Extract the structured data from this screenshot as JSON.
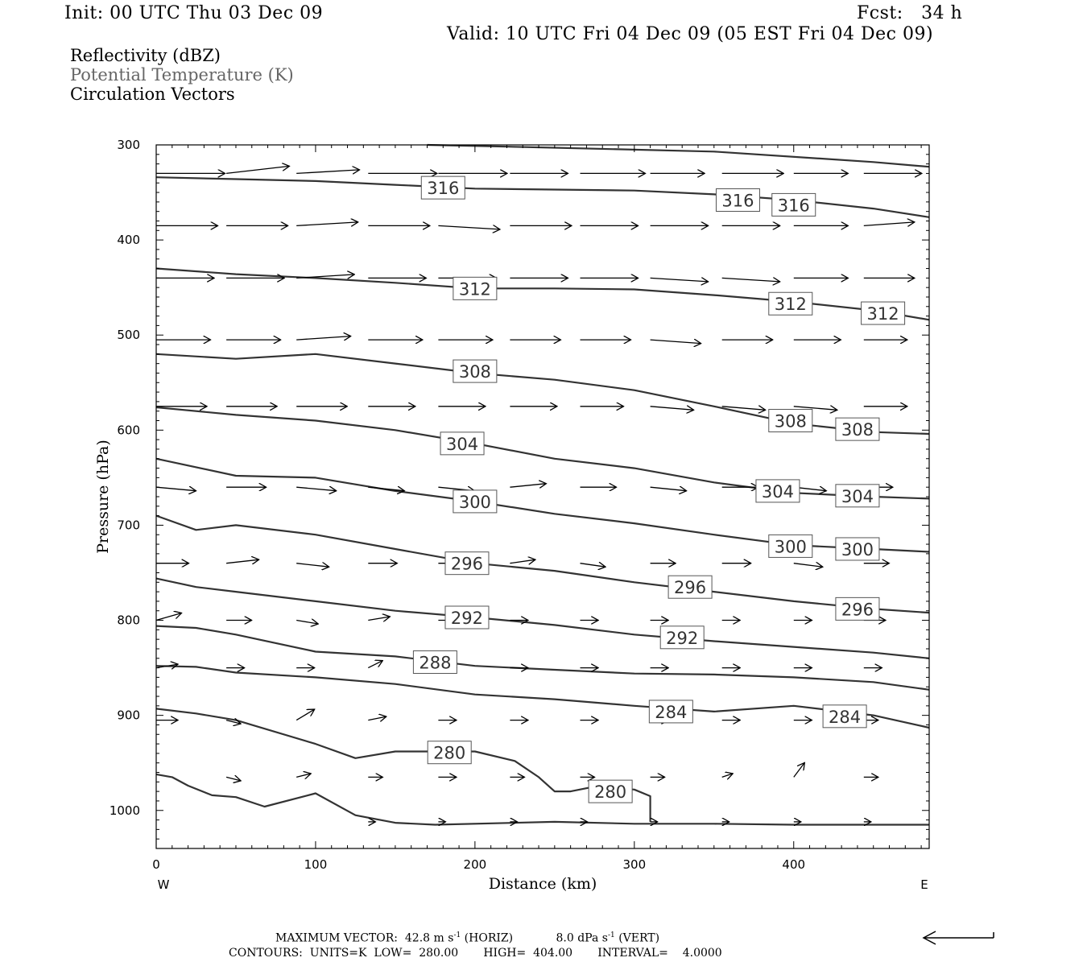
{
  "header": {
    "init": "Init: 00 UTC Thu 03 Dec 09",
    "fcst": "Fcst:   34 h",
    "valid": "Valid: 10 UTC Fri 04 Dec 09 (05 EST Fri 04 Dec 09)"
  },
  "legend": {
    "line1": "Reflectivity (dBZ)",
    "line2": "Potential Temperature (K)",
    "line3": "Circulation Vectors"
  },
  "footer": {
    "max_vector_label": "MAXIMUM VECTOR:",
    "max_vector_horiz": "42.8 m s",
    "horiz_exp": "-1",
    "horiz_tag": "(HORIZ)",
    "max_vector_vert": "8.0 dPa s",
    "vert_exp": "-1",
    "vert_tag": "(VERT)",
    "contours": "CONTOURS:  UNITS=K  LOW=  280.00       HIGH=  404.00       INTERVAL=    4.0000"
  },
  "colors": {
    "contour": "#333333",
    "vector": "#000000",
    "frame": "#000000"
  },
  "chart_data": {
    "type": "line",
    "title": "Potential Temperature (K)",
    "xlabel": "Distance (km)",
    "ylabel": "Pressure (hPa)",
    "xlim": [
      0,
      485
    ],
    "ylim": [
      1040,
      300
    ],
    "x_ticks": [
      0,
      100,
      200,
      300,
      400
    ],
    "y_ticks": [
      300,
      400,
      500,
      600,
      700,
      800,
      900,
      1000
    ],
    "x_end_labels": {
      "left": "W",
      "right": "E"
    },
    "contour_levels": [
      280,
      284,
      288,
      292,
      296,
      300,
      304,
      308,
      312,
      316
    ],
    "series": [
      {
        "name": "316",
        "label_at": [
          [
            180,
            345
          ],
          [
            365,
            358
          ],
          [
            400,
            363
          ]
        ],
        "x": [
          0,
          50,
          100,
          150,
          200,
          250,
          300,
          350,
          400,
          450,
          485
        ],
        "y": [
          334,
          336,
          338,
          342,
          346,
          347,
          348,
          352,
          358,
          367,
          376
        ]
      },
      {
        "name": "316b",
        "x": [
          170,
          250,
          350,
          450,
          485
        ],
        "y": [
          300,
          303,
          307,
          318,
          323
        ]
      },
      {
        "name": "312",
        "label_at": [
          [
            200,
            451
          ],
          [
            398,
            467
          ],
          [
            456,
            477
          ]
        ],
        "x": [
          0,
          50,
          100,
          150,
          200,
          250,
          300,
          350,
          400,
          450,
          485
        ],
        "y": [
          430,
          436,
          440,
          445,
          451,
          451,
          452,
          458,
          465,
          474,
          484
        ]
      },
      {
        "name": "308",
        "label_at": [
          [
            200,
            538
          ],
          [
            398,
            590
          ],
          [
            440,
            599
          ]
        ],
        "x": [
          0,
          50,
          100,
          150,
          200,
          250,
          300,
          350,
          400,
          450,
          485
        ],
        "y": [
          520,
          525,
          520,
          530,
          540,
          547,
          558,
          575,
          593,
          602,
          604
        ]
      },
      {
        "name": "304",
        "label_at": [
          [
            192,
            614
          ],
          [
            390,
            664
          ],
          [
            440,
            669
          ]
        ],
        "x": [
          0,
          50,
          100,
          150,
          200,
          250,
          300,
          350,
          400,
          450,
          485
        ],
        "y": [
          576,
          584,
          590,
          600,
          614,
          630,
          640,
          655,
          666,
          670,
          672
        ]
      },
      {
        "name": "300",
        "label_at": [
          [
            200,
            675
          ],
          [
            398,
            722
          ],
          [
            440,
            725
          ]
        ],
        "x": [
          0,
          50,
          100,
          150,
          200,
          250,
          300,
          350,
          400,
          450,
          485
        ],
        "y": [
          630,
          648,
          650,
          664,
          675,
          688,
          698,
          710,
          721,
          725,
          728
        ]
      },
      {
        "name": "296",
        "label_at": [
          [
            195,
            740
          ],
          [
            335,
            765
          ],
          [
            440,
            788
          ]
        ],
        "x": [
          0,
          25,
          50,
          100,
          150,
          200,
          250,
          300,
          350,
          400,
          450,
          485
        ],
        "y": [
          690,
          705,
          700,
          710,
          725,
          740,
          748,
          760,
          770,
          780,
          788,
          792
        ]
      },
      {
        "name": "292",
        "label_at": [
          [
            195,
            797
          ],
          [
            330,
            818
          ]
        ],
        "x": [
          0,
          25,
          50,
          100,
          150,
          200,
          250,
          300,
          350,
          400,
          450,
          485
        ],
        "y": [
          756,
          765,
          770,
          780,
          790,
          797,
          805,
          815,
          822,
          828,
          834,
          840
        ]
      },
      {
        "name": "288",
        "label_at": [
          [
            175,
            844
          ]
        ],
        "x": [
          0,
          25,
          50,
          100,
          150,
          200,
          250,
          300,
          350,
          400,
          450,
          485
        ],
        "y": [
          806,
          808,
          815,
          833,
          838,
          848,
          852,
          856,
          857,
          860,
          865,
          873
        ]
      },
      {
        "name": "284",
        "label_at": [
          [
            323,
            896
          ],
          [
            432,
            901
          ]
        ],
        "x": [
          0,
          25,
          50,
          100,
          150,
          200,
          250,
          300,
          350,
          400,
          450,
          485
        ],
        "y": [
          848,
          849,
          855,
          860,
          867,
          878,
          883,
          890,
          896,
          890,
          900,
          913
        ]
      },
      {
        "name": "280",
        "label_at": [
          [
            184,
            939
          ],
          [
            285,
            980
          ]
        ],
        "x": [
          0,
          25,
          50,
          100,
          125,
          150,
          200,
          225,
          240,
          250,
          260,
          275,
          300,
          310,
          310
        ],
        "y": [
          893,
          898,
          905,
          930,
          945,
          938,
          938,
          948,
          965,
          980,
          980,
          975,
          978,
          985,
          1012
        ]
      },
      {
        "name": "280b",
        "x": [
          0,
          10,
          20,
          35,
          50,
          68,
          100,
          125,
          150,
          175,
          250,
          300,
          350,
          400,
          485
        ],
        "y": [
          962,
          965,
          974,
          984,
          986,
          996,
          982,
          1005,
          1013,
          1015,
          1012,
          1014,
          1014,
          1015,
          1015
        ]
      }
    ],
    "vectors": {
      "columns_x": [
        0,
        44,
        88,
        133,
        177,
        222,
        266,
        310,
        355,
        400,
        444
      ],
      "rows": [
        {
          "p": 330,
          "u": [
            0.95,
            0.87,
            0.87,
            0.95,
            0.95,
            0.8,
            0.9,
            0.75,
            0.85,
            0.75,
            0.8
          ],
          "v": [
            0,
            -0.1,
            -0.05,
            0,
            0,
            0,
            0,
            0,
            0,
            0,
            0
          ]
        },
        {
          "p": 385,
          "u": [
            0.85,
            0.85,
            0.85,
            0.85,
            0.85,
            0.85,
            0.8,
            0.8,
            0.8,
            0.75,
            0.7
          ],
          "v": [
            0,
            0,
            -0.05,
            0,
            0.05,
            0,
            0,
            0,
            0,
            0,
            -0.05
          ]
        },
        {
          "p": 440,
          "u": [
            0.8,
            0.8,
            0.8,
            0.8,
            0.8,
            0.8,
            0.8,
            0.8,
            0.8,
            0.75,
            0.7
          ],
          "v": [
            0,
            0,
            -0.05,
            0,
            0,
            0,
            0,
            0.05,
            0.05,
            0,
            0
          ]
        },
        {
          "p": 505,
          "u": [
            0.75,
            0.75,
            0.75,
            0.75,
            0.75,
            0.7,
            0.7,
            0.7,
            0.7,
            0.65,
            0.6
          ],
          "v": [
            0,
            0,
            -0.05,
            0,
            0,
            0,
            0,
            0.05,
            0,
            0,
            0
          ]
        },
        {
          "p": 575,
          "u": [
            0.7,
            0.7,
            0.7,
            0.65,
            0.65,
            0.65,
            0.6,
            0.6,
            0.6,
            0.6,
            0.6
          ],
          "v": [
            0,
            0,
            0,
            0,
            0,
            0,
            0,
            0.05,
            0.05,
            0.05,
            0
          ]
        },
        {
          "p": 660,
          "u": [
            0.55,
            0.55,
            0.55,
            0.5,
            0.5,
            0.5,
            0.5,
            0.5,
            0.5,
            0.45,
            0.4
          ],
          "v": [
            0.05,
            0,
            0.05,
            0.05,
            0.05,
            -0.05,
            0,
            0.05,
            0,
            0.05,
            0
          ]
        },
        {
          "p": 740,
          "u": [
            0.45,
            0.45,
            0.45,
            0.4,
            0.4,
            0.35,
            0.35,
            0.35,
            0.4,
            0.4,
            0.35
          ],
          "v": [
            0,
            -0.05,
            0.05,
            0,
            0,
            -0.05,
            0.05,
            0,
            0,
            0.05,
            0
          ]
        },
        {
          "p": 800,
          "u": [
            0.35,
            0.35,
            0.3,
            0.3,
            0.3,
            0.25,
            0.25,
            0.25,
            0.25,
            0.25,
            0.3
          ],
          "v": [
            -0.1,
            0,
            0.05,
            -0.05,
            0,
            0,
            0,
            0,
            0,
            0,
            0
          ]
        },
        {
          "p": 850,
          "u": [
            0.3,
            0.25,
            0.25,
            0.2,
            0.25,
            0.25,
            0.25,
            0.25,
            0.25,
            0.25,
            0.25
          ],
          "v": [
            -0.05,
            0,
            0,
            -0.1,
            0,
            0,
            0,
            0,
            0,
            0,
            0
          ]
        },
        {
          "p": 905,
          "u": [
            0.3,
            0.2,
            0.25,
            0.25,
            0.25,
            0.25,
            0.25,
            0.25,
            0.25,
            0.25,
            0.2
          ],
          "v": [
            0,
            0.05,
            -0.15,
            -0.05,
            0,
            0,
            0,
            0,
            0,
            0,
            0
          ]
        },
        {
          "p": 965,
          "u": [
            0,
            0.2,
            0.2,
            0.2,
            0.25,
            0.2,
            0.2,
            0.2,
            0.15,
            0.15,
            0.2
          ],
          "v": [
            0,
            0.05,
            -0.05,
            0,
            0,
            0,
            0,
            0,
            -0.05,
            -0.2,
            0
          ]
        },
        {
          "p": 1012,
          "u": [
            0,
            0,
            0,
            0.1,
            0.1,
            0.1,
            0.1,
            0.1,
            0.1,
            0.1,
            0.1
          ],
          "v": [
            0,
            0,
            0,
            0,
            0,
            0,
            0,
            0,
            0,
            0,
            0
          ]
        }
      ]
    }
  }
}
